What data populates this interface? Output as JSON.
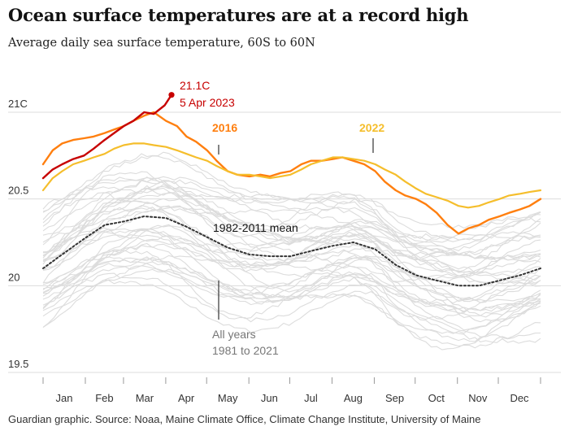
{
  "header": {
    "title": "Ocean surface temperatures are at a record high",
    "subtitle": "Average daily sea surface temperature, 60S to 60N"
  },
  "footer": {
    "source": "Guardian graphic. Source: Noaa, Maine Climate Office, Climate Change Institute, University of Maine"
  },
  "colors": {
    "year_2023": "#c70000",
    "year_2016": "#ff7f0f",
    "year_2022": "#f5be2c",
    "mean": "#333333",
    "all_years": "#dcdcdc",
    "grid": "#dcdcdc",
    "axis_text": "#333333",
    "muted_text": "#777777"
  },
  "chart_data": {
    "type": "line",
    "x_unit": "day of year",
    "ylim": [
      19.5,
      21.1
    ],
    "yticks": [
      {
        "value": 21.0,
        "label": "21C"
      },
      {
        "value": 20.5,
        "label": "20.5"
      },
      {
        "value": 20.0,
        "label": "20"
      },
      {
        "value": 19.5,
        "label": "19.5"
      }
    ],
    "months": [
      "Jan",
      "Feb",
      "Mar",
      "Apr",
      "May",
      "Jun",
      "Jul",
      "Aug",
      "Sep",
      "Oct",
      "Nov",
      "Dec"
    ],
    "grid": "horizontal",
    "annotations": {
      "record_value": "21.1C",
      "record_date": "5 Apr 2023",
      "label_2016": "2016",
      "label_2022": "2022",
      "label_mean": "1982-2011 mean",
      "label_all_years_1": "All years",
      "label_all_years_2": "1981 to 2021"
    },
    "series": [
      {
        "name": "1982-2011 mean",
        "key": "mean",
        "style": "dotted",
        "x": [
          1,
          15,
          31,
          46,
          60,
          75,
          91,
          106,
          121,
          136,
          152,
          167,
          182,
          197,
          213,
          228,
          244,
          259,
          274,
          289,
          305,
          320,
          335,
          350,
          365
        ],
        "y": [
          20.1,
          20.18,
          20.27,
          20.35,
          20.37,
          20.4,
          20.39,
          20.34,
          20.28,
          20.22,
          20.18,
          20.17,
          20.17,
          20.2,
          20.23,
          20.25,
          20.21,
          20.12,
          20.06,
          20.03,
          20.0,
          20.0,
          20.03,
          20.06,
          20.1
        ]
      },
      {
        "name": "2016",
        "key": "2016",
        "style": "solid",
        "x": [
          1,
          8,
          15,
          23,
          31,
          38,
          46,
          53,
          60,
          67,
          75,
          82,
          91,
          99,
          106,
          113,
          121,
          128,
          136,
          143,
          152,
          160,
          167,
          175,
          182,
          190,
          197,
          205,
          213,
          220,
          228,
          236,
          244,
          251,
          259,
          266,
          274,
          281,
          289,
          297,
          305,
          312,
          320,
          327,
          335,
          342,
          350,
          357,
          365
        ],
        "y": [
          20.7,
          20.78,
          20.82,
          20.84,
          20.85,
          20.86,
          20.88,
          20.9,
          20.92,
          20.95,
          20.98,
          21.0,
          20.95,
          20.92,
          20.86,
          20.83,
          20.78,
          20.72,
          20.66,
          20.64,
          20.63,
          20.64,
          20.63,
          20.65,
          20.66,
          20.7,
          20.72,
          20.72,
          20.73,
          20.74,
          20.72,
          20.7,
          20.66,
          20.6,
          20.55,
          20.52,
          20.5,
          20.47,
          20.42,
          20.35,
          20.3,
          20.33,
          20.35,
          20.38,
          20.4,
          20.42,
          20.44,
          20.46,
          20.5
        ]
      },
      {
        "name": "2022",
        "key": "2022",
        "style": "solid",
        "x": [
          1,
          8,
          15,
          23,
          31,
          38,
          46,
          53,
          60,
          67,
          75,
          82,
          91,
          99,
          106,
          113,
          121,
          128,
          136,
          143,
          152,
          160,
          167,
          175,
          182,
          190,
          197,
          205,
          213,
          220,
          228,
          236,
          244,
          251,
          259,
          266,
          274,
          281,
          289,
          297,
          305,
          312,
          320,
          327,
          335,
          342,
          350,
          357,
          365
        ],
        "y": [
          20.55,
          20.62,
          20.66,
          20.7,
          20.72,
          20.74,
          20.76,
          20.79,
          20.81,
          20.82,
          20.82,
          20.81,
          20.8,
          20.78,
          20.76,
          20.74,
          20.72,
          20.69,
          20.66,
          20.64,
          20.64,
          20.63,
          20.62,
          20.63,
          20.64,
          20.67,
          20.7,
          20.72,
          20.74,
          20.74,
          20.73,
          20.72,
          20.7,
          20.67,
          20.64,
          20.6,
          20.56,
          20.53,
          20.51,
          20.49,
          20.46,
          20.45,
          20.46,
          20.48,
          20.5,
          20.52,
          20.53,
          20.54,
          20.55
        ]
      },
      {
        "name": "2023",
        "key": "2023",
        "style": "solid",
        "x": [
          1,
          8,
          15,
          23,
          31,
          38,
          46,
          53,
          60,
          67,
          75,
          82,
          90,
          95
        ],
        "y": [
          20.62,
          20.67,
          20.7,
          20.73,
          20.75,
          20.79,
          20.84,
          20.88,
          20.92,
          20.95,
          21.0,
          20.99,
          21.04,
          21.1
        ]
      }
    ]
  }
}
